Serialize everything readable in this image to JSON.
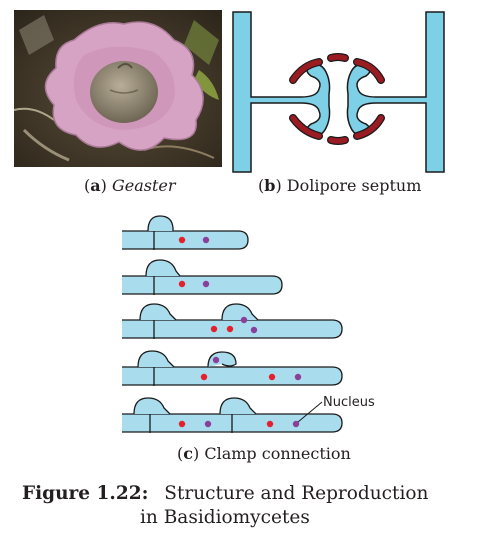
{
  "panel_a": {
    "letter": "a",
    "name": "Geaster"
  },
  "panel_b": {
    "letter": "b",
    "name": "Dolipore septum"
  },
  "panel_c": {
    "letter": "c",
    "name": "Clamp connection",
    "nucleus_label": "Nucleus"
  },
  "figure": {
    "number": "Figure 1.22:",
    "title_line1": "Structure and Reproduction",
    "title_line2": "in Basidiomycetes"
  },
  "colors": {
    "hypha_fill": "#a9ddee",
    "septum_fill": "#7dd0e6",
    "outline": "#1a1a1a",
    "nucleus_red": "#e5202e",
    "nucleus_purple": "#8a3f98",
    "parenthesome": "#9b1b23",
    "geaster_pink": "#d7a3c4",
    "geaster_center": "#8f8675"
  }
}
